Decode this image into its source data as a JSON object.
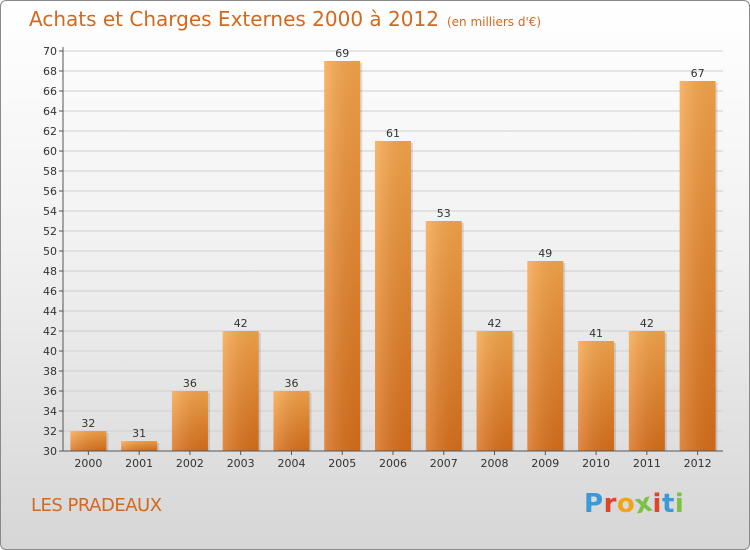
{
  "header": {
    "title": "Achats et Charges Externes 2000 à 2012",
    "subtitle": "(en milliers d'€)"
  },
  "footer": {
    "commune": "LES PRADEAUX",
    "logo_letters": [
      "P",
      "r",
      "o",
      "x",
      "i",
      "t",
      "i"
    ],
    "logo_colors": [
      "#3a9ad9",
      "#e0452b",
      "#f2a31c",
      "#7cc242",
      "#e0452b",
      "#3a9ad9",
      "#7cc242"
    ]
  },
  "colors": {
    "accent": "#d2691e",
    "bar_top": "#f7a64a",
    "bar_bottom": "#d96f1a",
    "grid": "#cfcfcf"
  },
  "chart_data": {
    "type": "bar",
    "title": "Achats et Charges Externes 2000 à 2012",
    "subtitle": "(en milliers d'€)",
    "categories": [
      "2000",
      "2001",
      "2002",
      "2003",
      "2004",
      "2005",
      "2006",
      "2007",
      "2008",
      "2009",
      "2010",
      "2011",
      "2012"
    ],
    "values": [
      32,
      31,
      36,
      42,
      36,
      69,
      61,
      53,
      42,
      49,
      41,
      42,
      67
    ],
    "xlabel": "",
    "ylabel": "",
    "ylim": [
      30,
      70
    ],
    "ytick_step": 2,
    "grid": true,
    "legend": "none"
  }
}
